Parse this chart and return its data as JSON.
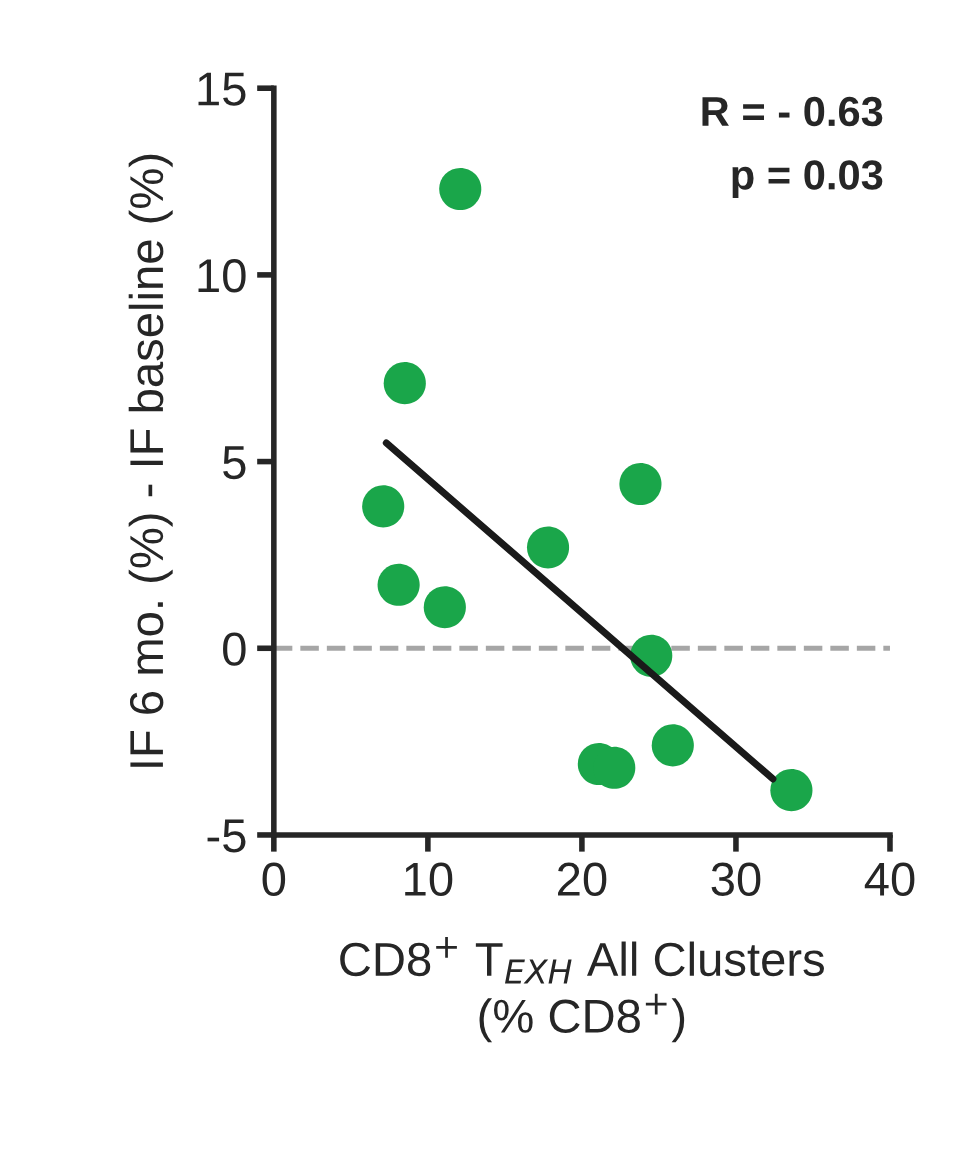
{
  "chart_data": {
    "type": "scatter",
    "xlabel": "CD8$^{+}$ T$_{EXH}$ All Clusters\n(% CD8$^{+}$)",
    "ylabel": "IF 6 mo. (%) - IF baseline (%)",
    "x": [
      12.1,
      8.5,
      7.1,
      8.1,
      11.1,
      17.8,
      23.8,
      24.5,
      21.1,
      22.1,
      25.9,
      33.6
    ],
    "series": [
      {
        "color": "#1aa64a",
        "marker": "circle",
        "values": [
          12.3,
          7.1,
          3.8,
          1.7,
          1.1,
          2.7,
          4.4,
          -0.2,
          -3.1,
          -3.2,
          -2.6,
          -3.8
        ]
      },
      {
        "type": "line",
        "color": "#1a1a1a",
        "x": [
          7.3,
          32.4
        ],
        "marker": "none",
        "values": [
          5.5,
          -3.5
        ]
      }
    ],
    "xlim": [
      0,
      40
    ],
    "xticks": [
      0,
      10,
      20,
      30,
      40
    ],
    "ylim": [
      -5,
      15
    ],
    "yticks": [
      -5,
      0,
      5,
      10,
      15
    ],
    "grid": false,
    "ref_lines": [
      {
        "axis": "y",
        "value": 0,
        "color": "#a6a6a6",
        "line_style": "dashed"
      }
    ],
    "annotations": [
      "R = - 0.63",
      "p = 0.03"
    ]
  }
}
